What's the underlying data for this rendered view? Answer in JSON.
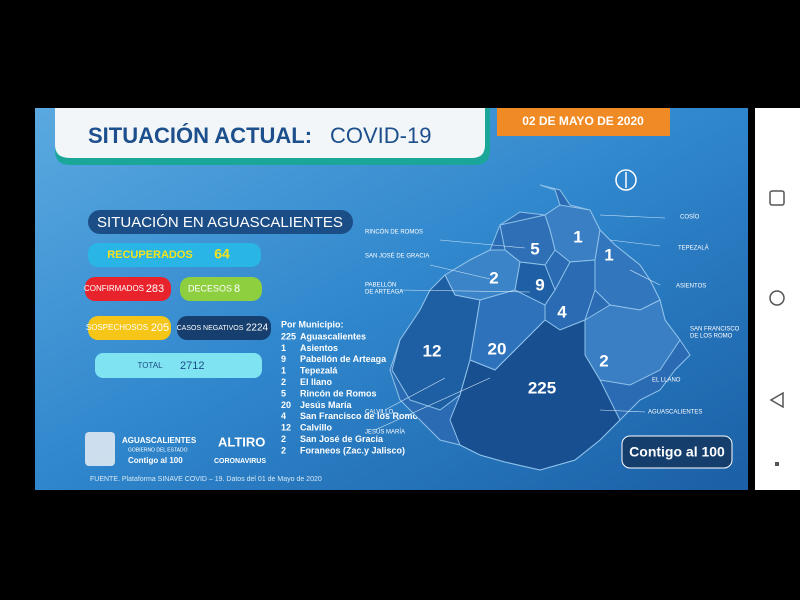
{
  "header": {
    "title_bold": "SITUACIÓN ACTUAL:",
    "title_light": "COVID-19",
    "date": "02 DE MAYO DE 2020"
  },
  "section_title": "SITUACIÓN EN AGUASCALIENTES",
  "stats": {
    "recuperados": {
      "label": "RECUPERADOS",
      "value": 64
    },
    "confirmados": {
      "label": "CONFIRMADOS",
      "value": 283
    },
    "decesos": {
      "label": "DECESOS",
      "value": 8
    },
    "sospechosos": {
      "label": "SOSPECHOSOS",
      "value": 205
    },
    "negativos": {
      "label": "CASOS NEGATIVOS",
      "value": 2224
    },
    "total": {
      "label": "TOTAL",
      "value": 2712
    }
  },
  "municipios": {
    "heading": "Por Municipio:",
    "rows": [
      {
        "count": 225,
        "name": "Aguascalientes"
      },
      {
        "count": 1,
        "name": "Asientos"
      },
      {
        "count": 9,
        "name": "Pabellón de Arteaga"
      },
      {
        "count": 1,
        "name": "Tepezalá"
      },
      {
        "count": 2,
        "name": "El llano"
      },
      {
        "count": 5,
        "name": "Rincón de Romos"
      },
      {
        "count": 20,
        "name": "Jesús María"
      },
      {
        "count": 4,
        "name": "San Francisco de los Romo"
      },
      {
        "count": 12,
        "name": "Calvillo"
      },
      {
        "count": 2,
        "name": "San José de Gracia"
      },
      {
        "count": 2,
        "name": "Foraneos (Zac.y Jalisco)"
      }
    ]
  },
  "map": {
    "labels": [
      "COSÍO",
      "TEPEZALÁ",
      "ASIENTOS",
      "SAN FRANCISCO",
      "DE LOS ROMO",
      "EL LLANO",
      "AGUASCALIENTES",
      "RINCÓN DE ROMOS",
      "SAN JOSÉ DE GRACIA",
      "PABELLÓN",
      "DE ARTEAGA",
      "CALVILLO",
      "JESÚS MARÍA"
    ],
    "numbers": [
      5,
      1,
      1,
      2,
      9,
      4,
      12,
      20,
      2,
      225
    ]
  },
  "logos": {
    "state": "AGUASCALIENTES",
    "gov": "GOBIERNO DEL ESTADO",
    "slogan": "Contigo al 100",
    "altiro": "ALTIRO",
    "corona": "CORONAVIRUS",
    "badge": "Contigo al 100"
  },
  "source": "FUENTE. Plataforma SINAVE COVID – 19. Datos del 01 de Mayo de 2020"
}
